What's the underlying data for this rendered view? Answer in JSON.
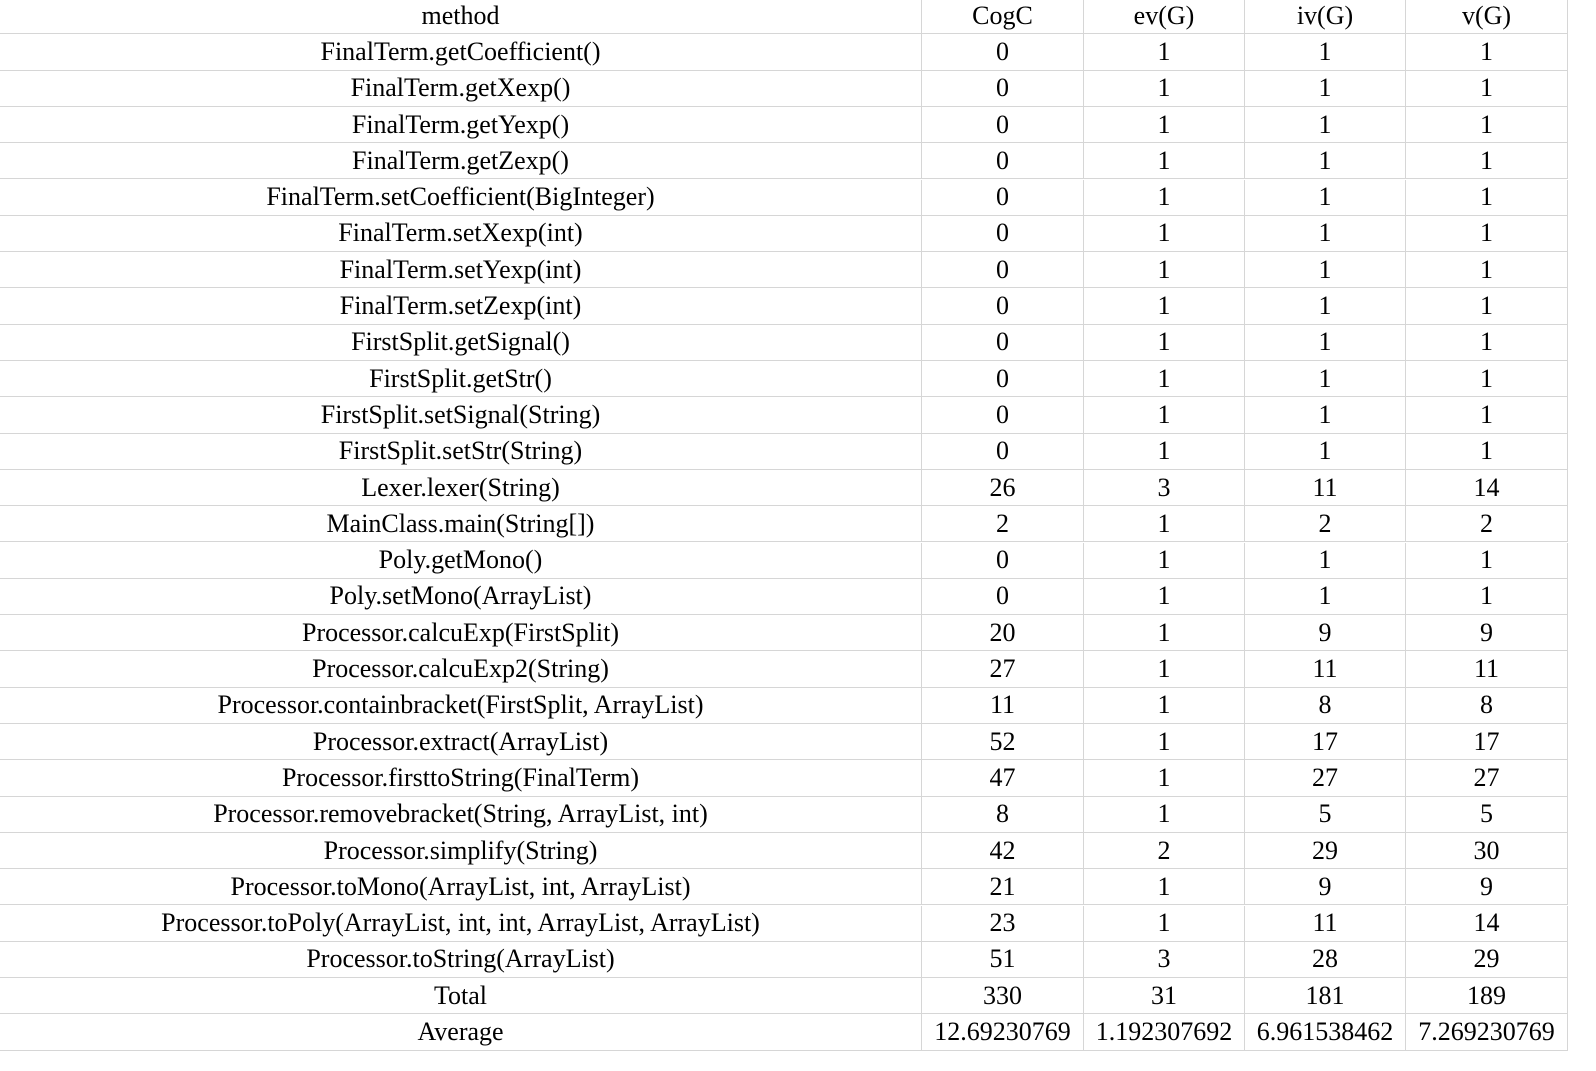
{
  "table": {
    "header": [
      "method",
      "CogC",
      "ev(G)",
      "iv(G)",
      "v(G)"
    ],
    "rows": [
      [
        "FinalTerm.getCoefficient()",
        0,
        1,
        1,
        1
      ],
      [
        "FinalTerm.getXexp()",
        0,
        1,
        1,
        1
      ],
      [
        "FinalTerm.getYexp()",
        0,
        1,
        1,
        1
      ],
      [
        "FinalTerm.getZexp()",
        0,
        1,
        1,
        1
      ],
      [
        "FinalTerm.setCoefficient(BigInteger)",
        0,
        1,
        1,
        1
      ],
      [
        "FinalTerm.setXexp(int)",
        0,
        1,
        1,
        1
      ],
      [
        "FinalTerm.setYexp(int)",
        0,
        1,
        1,
        1
      ],
      [
        "FinalTerm.setZexp(int)",
        0,
        1,
        1,
        1
      ],
      [
        "FirstSplit.getSignal()",
        0,
        1,
        1,
        1
      ],
      [
        "FirstSplit.getStr()",
        0,
        1,
        1,
        1
      ],
      [
        "FirstSplit.setSignal(String)",
        0,
        1,
        1,
        1
      ],
      [
        "FirstSplit.setStr(String)",
        0,
        1,
        1,
        1
      ],
      [
        "Lexer.lexer(String)",
        26,
        3,
        11,
        14
      ],
      [
        "MainClass.main(String[])",
        2,
        1,
        2,
        2
      ],
      [
        "Poly.getMono()",
        0,
        1,
        1,
        1
      ],
      [
        "Poly.setMono(ArrayList)",
        0,
        1,
        1,
        1
      ],
      [
        "Processor.calcuExp(FirstSplit)",
        20,
        1,
        9,
        9
      ],
      [
        "Processor.calcuExp2(String)",
        27,
        1,
        11,
        11
      ],
      [
        "Processor.containbracket(FirstSplit, ArrayList)",
        11,
        1,
        8,
        8
      ],
      [
        "Processor.extract(ArrayList)",
        52,
        1,
        17,
        17
      ],
      [
        "Processor.firsttoString(FinalTerm)",
        47,
        1,
        27,
        27
      ],
      [
        "Processor.removebracket(String, ArrayList, int)",
        8,
        1,
        5,
        5
      ],
      [
        "Processor.simplify(String)",
        42,
        2,
        29,
        30
      ],
      [
        "Processor.toMono(ArrayList, int, ArrayList)",
        21,
        1,
        9,
        9
      ],
      [
        "Processor.toPoly(ArrayList, int, int, ArrayList, ArrayList)",
        23,
        1,
        11,
        14
      ],
      [
        "Processor.toString(ArrayList)",
        51,
        3,
        28,
        29
      ],
      [
        "Total",
        330,
        31,
        181,
        189
      ],
      [
        "Average",
        12.69230769,
        1.192307692,
        6.961538462,
        7.269230769
      ]
    ]
  }
}
